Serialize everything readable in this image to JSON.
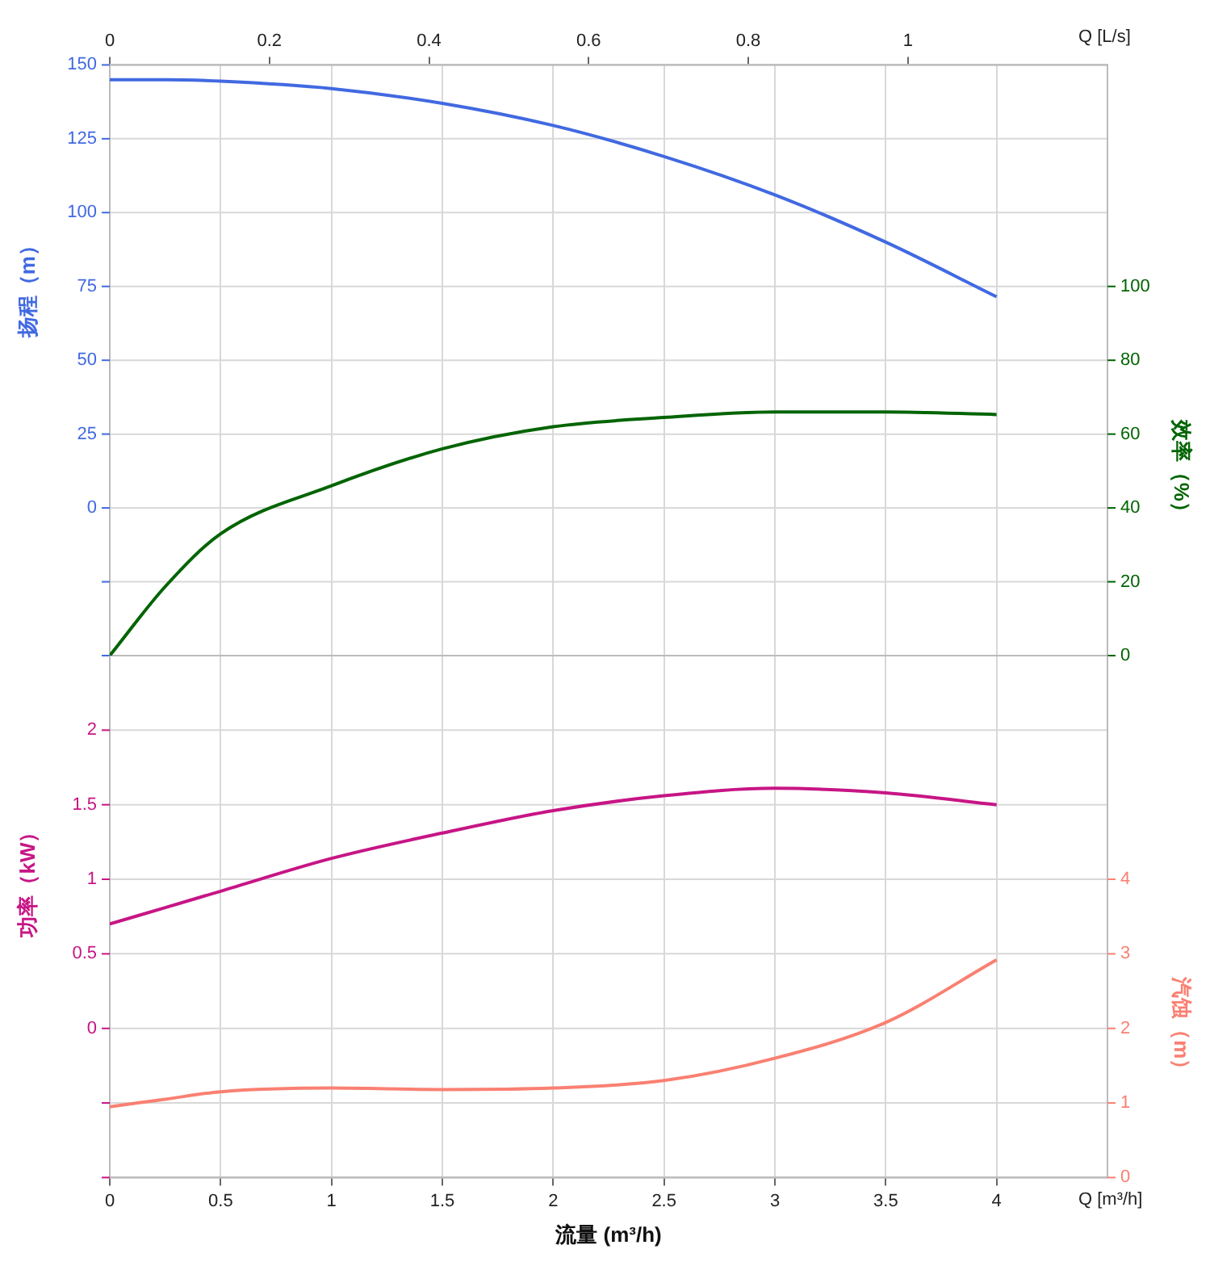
{
  "chart_data": [
    {
      "type": "line",
      "x2label": "Q [L/s]",
      "ylabel": "扬程（m）",
      "y2label": "效率（%）",
      "tick_labels": "y",
      "x": [
        0,
        0.25,
        0.5,
        1,
        1.5,
        2,
        2.5,
        3,
        3.5,
        4
      ],
      "xlim": [
        0,
        4.5
      ],
      "xticks": [
        0,
        0.5,
        1,
        1.5,
        2,
        2.5,
        3,
        3.5,
        4
      ],
      "x2lim": [
        0,
        1.25
      ],
      "x2ticks": [
        0,
        0.2,
        0.4,
        0.6,
        0.8,
        1
      ],
      "ylim": [
        -50,
        150
      ],
      "yticks": [
        {
          "value": -50,
          "label": null
        },
        {
          "value": -25,
          "label": null
        },
        0,
        25,
        50,
        75,
        100,
        125,
        150
      ],
      "y2lim": [
        0,
        160
      ],
      "y2ticks": [
        0,
        20,
        40,
        60,
        80,
        100
      ],
      "grid": true,
      "series": [
        {
          "color": "#4169e1",
          "values": [
            145,
            145,
            144.5,
            142,
            137,
            129.5,
            119,
            106,
            90,
            71.5
          ]
        },
        {
          "color": "#006400",
          "axis": "y2",
          "values": [
            0,
            18.7,
            33,
            46,
            56,
            62,
            64.5,
            66,
            66,
            65.3
          ]
        }
      ]
    },
    {
      "type": "line",
      "xlabel": "流量 (m³/h)",
      "ylabel": "功率（kW）",
      "y2label": "汽蚀（m）",
      "annotations": [
        "Q [m³/h]"
      ],
      "x": [
        0,
        0.25,
        0.5,
        1,
        1.5,
        2,
        2.5,
        3,
        3.5,
        4
      ],
      "xlim": [
        0,
        4.5
      ],
      "xticks": [
        0,
        0.5,
        1,
        1.5,
        2,
        2.5,
        3,
        3.5,
        4
      ],
      "ylim": [
        -1,
        2.5
      ],
      "yticks": [
        {
          "value": -1,
          "label": null
        },
        {
          "value": -0.5,
          "label": null
        },
        0,
        0.5,
        1,
        1.5,
        2
      ],
      "y2lim": [
        0,
        7
      ],
      "y2ticks": [
        0,
        1,
        2,
        3,
        4
      ],
      "grid": true,
      "series": [
        {
          "color": "#c71585",
          "values": [
            0.7,
            0.81,
            0.92,
            1.14,
            1.31,
            1.46,
            1.56,
            1.61,
            1.58,
            1.5
          ]
        },
        {
          "color": "#fa8072",
          "axis": "y2",
          "values": [
            0.95,
            1.05,
            1.15,
            1.2,
            1.18,
            1.2,
            1.3,
            1.6,
            2.08,
            2.92
          ]
        }
      ]
    }
  ]
}
